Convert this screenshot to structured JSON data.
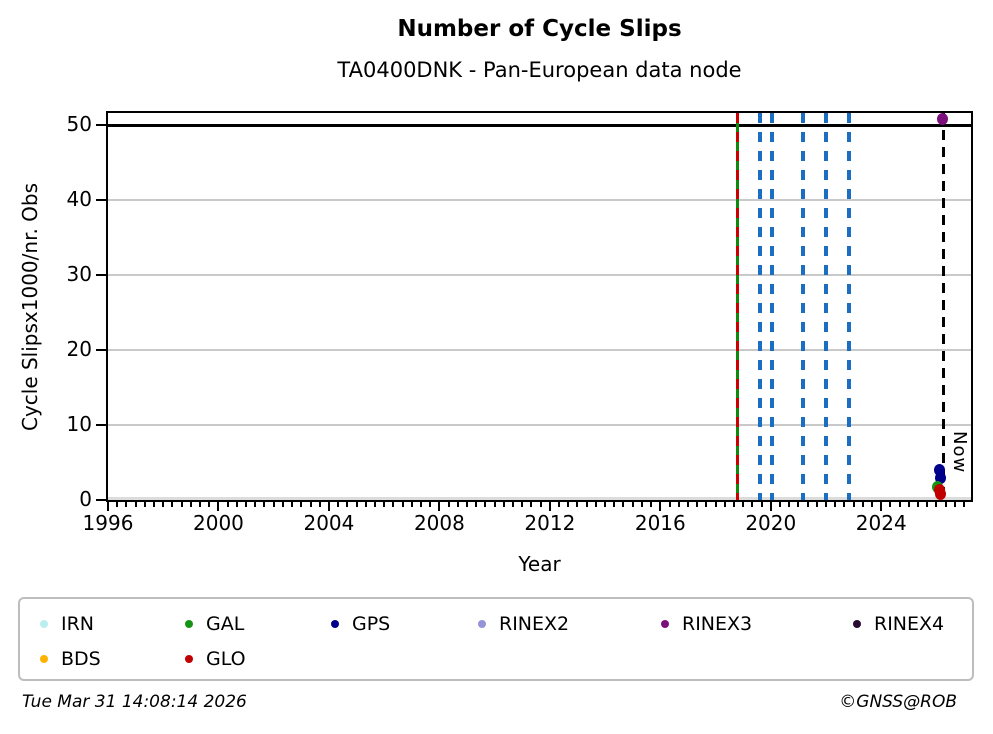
{
  "header": {
    "title": "Number of Cycle Slips",
    "subtitle": "TA0400DNK - Pan-European data node"
  },
  "footer": {
    "timestamp": "Tue Mar 31 14:08:14 2026",
    "credit": "©GNSS@ROB"
  },
  "legend": {
    "items": [
      {
        "id": "IRN",
        "label": "IRN"
      },
      {
        "id": "GAL",
        "label": "GAL"
      },
      {
        "id": "GPS",
        "label": "GPS"
      },
      {
        "id": "RINEX2",
        "label": "RINEX2"
      },
      {
        "id": "RINEX3",
        "label": "RINEX3"
      },
      {
        "id": "RINEX4",
        "label": "RINEX4"
      },
      {
        "id": "BDS",
        "label": "BDS"
      },
      {
        "id": "GLO",
        "label": "GLO"
      }
    ]
  },
  "chart_data": {
    "type": "scatter",
    "title": "Number of Cycle Slips",
    "subtitle": "TA0400DNK - Pan-European data node",
    "xlabel": "Year",
    "ylabel": "Cycle Slipsx1000/nr. Obs",
    "xlim": [
      1996,
      2027.25
    ],
    "ylim": [
      0,
      51.6
    ],
    "xticks_major": [
      1996,
      2000,
      2004,
      2008,
      2012,
      2016,
      2020,
      2024
    ],
    "xtick_minor_step": 0.33333,
    "yticks": [
      0,
      10,
      20,
      30,
      40,
      50
    ],
    "ygrid": [
      10,
      20,
      30,
      40
    ],
    "grid_color": "#c9c9c9",
    "hlines": [
      {
        "name": "cap-line-50",
        "value": 50,
        "color": "#000000",
        "width": 3
      },
      {
        "name": "baseline",
        "value": 0.25,
        "color": "#dcdcdc",
        "width": 3
      }
    ],
    "event_lines": [
      {
        "name": "gal-event-line",
        "year": 2018.78,
        "color": "#0f8a0f",
        "style": "solid",
        "width": 3
      },
      {
        "name": "glo-event-line",
        "year": 2018.78,
        "color": "#cc0000",
        "style": "dashed",
        "width": 3
      },
      {
        "name": "blue-event-line-1",
        "year": 2019.6,
        "color": "#1b6ec2",
        "style": "dashed",
        "width": 4
      },
      {
        "name": "blue-event-line-2",
        "year": 2020.05,
        "color": "#1b6ec2",
        "style": "dashed",
        "width": 4
      },
      {
        "name": "blue-event-line-3",
        "year": 2021.15,
        "color": "#1b6ec2",
        "style": "dashed",
        "width": 4
      },
      {
        "name": "blue-event-line-4",
        "year": 2022.0,
        "color": "#1b6ec2",
        "style": "dashed",
        "width": 4
      },
      {
        "name": "blue-event-line-5",
        "year": 2022.85,
        "color": "#1b6ec2",
        "style": "dashed",
        "width": 4
      }
    ],
    "now_line": {
      "year": 2026.25,
      "label": "Now",
      "color": "#000000",
      "style": "dashed",
      "width": 3
    },
    "series_colors": {
      "IRN": "#b9eef0",
      "GAL": "#169416",
      "GPS": "#00008b",
      "RINEX2": "#9494d8",
      "RINEX3": "#7d0f7d",
      "RINEX4": "#270b30",
      "BDS": "#ffb300",
      "GLO": "#c00000"
    },
    "points": [
      {
        "series": "RINEX3",
        "year": 2026.2,
        "value": 50.8
      },
      {
        "series": "GPS",
        "year": 2026.1,
        "value": 4.0
      },
      {
        "series": "GPS",
        "year": 2026.15,
        "value": 3.0
      },
      {
        "series": "GAL",
        "year": 2026.05,
        "value": 1.7
      },
      {
        "series": "GLO",
        "year": 2026.1,
        "value": 1.4
      },
      {
        "series": "GLO",
        "year": 2026.15,
        "value": 0.8
      }
    ]
  }
}
